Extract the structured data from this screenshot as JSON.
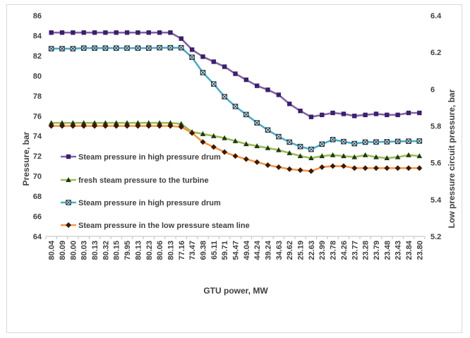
{
  "chart_data": {
    "type": "line",
    "xlabel": "GTU power, MW",
    "ylabel_left": "Pressure, bar",
    "ylabel_right": "Low pressure circuit pressure, bar",
    "y_left": {
      "min": 64,
      "max": 86,
      "step": 2,
      "ticks": [
        "64",
        "66",
        "68",
        "70",
        "72",
        "74",
        "76",
        "78",
        "80",
        "82",
        "84",
        "86"
      ]
    },
    "y_right": {
      "min": 5.2,
      "max": 6.4,
      "step": 0.2,
      "ticks": [
        "5.2",
        "5.4",
        "5.6",
        "5.8",
        "6",
        "6.2",
        "6.4"
      ]
    },
    "categories": [
      "80.04",
      "80.09",
      "80.00",
      "80.03",
      "80.13",
      "80.32",
      "80.15",
      "79.95",
      "80.13",
      "80.23",
      "80.06",
      "80.13",
      "77.16",
      "73.47",
      "69.38",
      "65.11",
      "59.71",
      "54.47",
      "49.04",
      "44.24",
      "39.24",
      "34.63",
      "29.62",
      "25.19",
      "22.63",
      "23.99",
      "23.78",
      "24.26",
      "23.77",
      "23.28",
      "23.79",
      "23.48",
      "23.43",
      "23.84",
      "23.80"
    ],
    "tick_labels": [
      "80.04",
      "80.09",
      "80.00",
      "80.03",
      "80.13",
      "80.32",
      "80.15",
      "79.95",
      "80.13",
      "80.23",
      "80.06",
      "80.13",
      "77.16",
      "73.47",
      "69.38",
      "65.11",
      "59.71",
      "54.47",
      "49.04",
      "44.24",
      "39.24",
      "34.63",
      "29.62",
      "25.19",
      "22.63",
      "23.99",
      "23.78",
      "24.26",
      "23.77",
      "23.28",
      "23.79",
      "23.48",
      "23.43",
      "23.84",
      "23.80"
    ],
    "grid": false,
    "legend_position": "left-middle",
    "series": [
      {
        "name": "Steam pressure in high pressure drum",
        "axis": "left",
        "line_color": "#8064a2",
        "marker": "square",
        "marker_color": "#3d1f6e",
        "values": [
          84.3,
          84.3,
          84.3,
          84.3,
          84.3,
          84.3,
          84.3,
          84.3,
          84.3,
          84.3,
          84.3,
          84.3,
          83.7,
          82.6,
          81.9,
          81.4,
          80.9,
          80.2,
          79.6,
          79.0,
          78.6,
          78.1,
          77.2,
          76.5,
          75.9,
          76.1,
          76.3,
          76.2,
          76.0,
          76.1,
          76.2,
          76.1,
          76.1,
          76.3,
          76.3
        ]
      },
      {
        "name": "fresh steam pressure to the turbine",
        "axis": "left",
        "line_color": "#9bbb59",
        "marker": "triangle",
        "marker_color": "#1f3a0f",
        "values": [
          75.3,
          75.3,
          75.3,
          75.3,
          75.3,
          75.3,
          75.3,
          75.3,
          75.3,
          75.3,
          75.3,
          75.3,
          75.2,
          74.4,
          74.2,
          74.0,
          73.8,
          73.5,
          73.2,
          73.0,
          72.8,
          72.6,
          72.3,
          72.0,
          71.8,
          72.0,
          72.1,
          72.0,
          71.9,
          72.1,
          71.9,
          71.8,
          71.9,
          72.1,
          72.0
        ]
      },
      {
        "name": "Steam pressure in high pressure drum",
        "axis": "right",
        "line_color": "#4bacc6",
        "marker": "square-x",
        "marker_color": "#1f3a4a",
        "values": [
          6.22,
          6.22,
          6.22,
          6.223,
          6.223,
          6.223,
          6.223,
          6.223,
          6.223,
          6.223,
          6.225,
          6.225,
          6.225,
          6.173,
          6.09,
          6.028,
          5.959,
          5.906,
          5.862,
          5.817,
          5.778,
          5.742,
          5.712,
          5.688,
          5.673,
          5.701,
          5.726,
          5.715,
          5.704,
          5.712,
          5.713,
          5.714,
          5.716,
          5.717,
          5.718
        ]
      },
      {
        "name": "Steam pressure in the low pressure steam line",
        "axis": "left",
        "line_color": "#f79646",
        "marker": "diamond",
        "marker_color": "#3a1a05",
        "values": [
          75.0,
          75.0,
          75.0,
          75.0,
          75.0,
          75.0,
          75.0,
          75.0,
          75.0,
          75.0,
          75.0,
          75.0,
          74.9,
          74.3,
          73.4,
          72.9,
          72.4,
          72.0,
          71.7,
          71.4,
          71.1,
          70.9,
          70.7,
          70.6,
          70.5,
          70.9,
          71.0,
          71.0,
          70.8,
          70.8,
          70.8,
          70.8,
          70.8,
          70.8,
          70.8
        ]
      }
    ]
  }
}
